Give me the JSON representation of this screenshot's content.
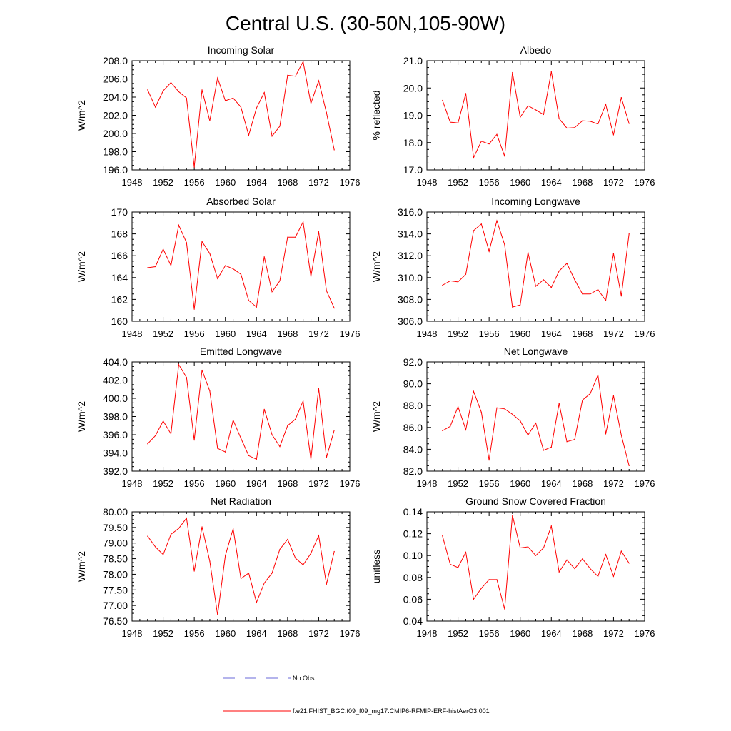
{
  "title": "Central U.S. (30-50N,105-90W)",
  "colors": {
    "model": "#ff0000",
    "obs": "#6a6ad8",
    "axes": "#000000"
  },
  "legend": {
    "obs_label": "No Obs",
    "model_label": "f.e21.FHIST_BGC.f09_f09_mg17.CMIP6-RFMIP-ERF-histAerO3.001"
  },
  "chart_data": [
    {
      "type": "line",
      "title": "Incoming Solar",
      "ylabel": "W/m^2",
      "xlim": [
        1948,
        1976
      ],
      "ylim": [
        196,
        208
      ],
      "xticks": [
        1948,
        1952,
        1956,
        1960,
        1964,
        1968,
        1972,
        1976
      ],
      "yticks": [
        "196.0",
        "198.0",
        "200.0",
        "202.0",
        "204.0",
        "206.0",
        "208.0"
      ],
      "x": [
        1950,
        1951,
        1952,
        1953,
        1954,
        1955,
        1956,
        1957,
        1958,
        1959,
        1960,
        1961,
        1962,
        1963,
        1964,
        1965,
        1966,
        1967,
        1968,
        1969,
        1970,
        1971,
        1972,
        1973,
        1974
      ],
      "values": [
        204.8,
        202.9,
        204.7,
        205.6,
        204.6,
        203.9,
        196.3,
        204.8,
        201.4,
        206.1,
        203.6,
        203.9,
        202.9,
        199.8,
        202.8,
        204.5,
        199.7,
        200.8,
        206.4,
        206.3,
        207.9,
        203.3,
        205.8,
        202.3,
        198.2
      ]
    },
    {
      "type": "line",
      "title": "Albedo",
      "ylabel": "% reflected",
      "xlim": [
        1948,
        1976
      ],
      "ylim": [
        17,
        21
      ],
      "xticks": [
        1948,
        1952,
        1956,
        1960,
        1964,
        1968,
        1972,
        1976
      ],
      "yticks": [
        "17.0",
        "18.0",
        "19.0",
        "20.0",
        "21.0"
      ],
      "x": [
        1950,
        1951,
        1952,
        1953,
        1954,
        1955,
        1956,
        1957,
        1958,
        1959,
        1960,
        1961,
        1962,
        1963,
        1964,
        1965,
        1966,
        1967,
        1968,
        1969,
        1970,
        1971,
        1972,
        1973,
        1974
      ],
      "values": [
        19.55,
        18.75,
        18.72,
        19.8,
        17.45,
        18.05,
        17.95,
        18.3,
        17.5,
        20.57,
        18.93,
        19.35,
        19.2,
        19.03,
        20.6,
        18.88,
        18.53,
        18.55,
        18.8,
        18.78,
        18.68,
        19.4,
        18.28,
        19.65,
        18.7
      ]
    },
    {
      "type": "line",
      "title": "Absorbed Solar",
      "ylabel": "W/m^2",
      "xlim": [
        1948,
        1976
      ],
      "ylim": [
        160,
        170
      ],
      "xticks": [
        1948,
        1952,
        1956,
        1960,
        1964,
        1968,
        1972,
        1976
      ],
      "yticks": [
        "160",
        "162",
        "164",
        "166",
        "168",
        "170"
      ],
      "x": [
        1950,
        1951,
        1952,
        1953,
        1954,
        1955,
        1956,
        1957,
        1958,
        1959,
        1960,
        1961,
        1962,
        1963,
        1964,
        1965,
        1966,
        1967,
        1968,
        1969,
        1970,
        1971,
        1972,
        1973,
        1974
      ],
      "values": [
        164.9,
        165.0,
        166.6,
        165.1,
        168.8,
        167.2,
        161.1,
        167.3,
        166.2,
        163.9,
        165.1,
        164.8,
        164.3,
        161.9,
        161.3,
        165.9,
        162.7,
        163.7,
        167.7,
        167.7,
        169.1,
        164.1,
        168.2,
        162.8,
        161.2
      ]
    },
    {
      "type": "line",
      "title": "Incoming Longwave",
      "ylabel": "W/m^2",
      "xlim": [
        1948,
        1976
      ],
      "ylim": [
        306,
        316
      ],
      "xticks": [
        1948,
        1952,
        1956,
        1960,
        1964,
        1968,
        1972,
        1976
      ],
      "yticks": [
        "306.0",
        "308.0",
        "310.0",
        "312.0",
        "314.0",
        "316.0"
      ],
      "x": [
        1950,
        1951,
        1952,
        1953,
        1954,
        1955,
        1956,
        1957,
        1958,
        1959,
        1960,
        1961,
        1962,
        1963,
        1964,
        1965,
        1966,
        1967,
        1968,
        1969,
        1970,
        1971,
        1972,
        1973,
        1974
      ],
      "values": [
        309.3,
        309.7,
        309.6,
        310.3,
        314.3,
        314.9,
        312.4,
        315.2,
        313.0,
        307.3,
        307.5,
        312.3,
        309.2,
        309.8,
        309.1,
        310.6,
        311.3,
        309.8,
        308.5,
        308.5,
        308.9,
        307.9,
        312.2,
        308.3,
        314.0
      ]
    },
    {
      "type": "line",
      "title": "Emitted Longwave",
      "ylabel": "W/m^2",
      "xlim": [
        1948,
        1976
      ],
      "ylim": [
        392,
        404
      ],
      "xticks": [
        1948,
        1952,
        1956,
        1960,
        1964,
        1968,
        1972,
        1976
      ],
      "yticks": [
        "392.0",
        "394.0",
        "396.0",
        "398.0",
        "400.0",
        "402.0",
        "404.0"
      ],
      "x": [
        1950,
        1951,
        1952,
        1953,
        1954,
        1955,
        1956,
        1957,
        1958,
        1959,
        1960,
        1961,
        1962,
        1963,
        1964,
        1965,
        1966,
        1967,
        1968,
        1969,
        1970,
        1971,
        1972,
        1973,
        1974
      ],
      "values": [
        395.0,
        395.9,
        397.5,
        396.1,
        403.7,
        402.3,
        395.4,
        403.1,
        400.8,
        394.5,
        394.1,
        397.6,
        395.6,
        393.7,
        393.3,
        398.8,
        396.0,
        394.7,
        397.0,
        397.7,
        399.7,
        393.3,
        401.1,
        393.5,
        396.5
      ]
    },
    {
      "type": "line",
      "title": "Net Longwave",
      "ylabel": "W/m^2",
      "xlim": [
        1948,
        1976
      ],
      "ylim": [
        82,
        92
      ],
      "xticks": [
        1948,
        1952,
        1956,
        1960,
        1964,
        1968,
        1972,
        1976
      ],
      "yticks": [
        "82.0",
        "84.0",
        "86.0",
        "88.0",
        "90.0",
        "92.0"
      ],
      "x": [
        1950,
        1951,
        1952,
        1953,
        1954,
        1955,
        1956,
        1957,
        1958,
        1959,
        1960,
        1961,
        1962,
        1963,
        1964,
        1965,
        1966,
        1967,
        1968,
        1969,
        1970,
        1971,
        1972,
        1973,
        1974
      ],
      "values": [
        85.7,
        86.1,
        87.9,
        85.8,
        89.3,
        87.4,
        83.0,
        87.8,
        87.7,
        87.2,
        86.6,
        85.3,
        86.4,
        83.9,
        84.2,
        88.2,
        84.7,
        84.9,
        88.5,
        89.1,
        90.8,
        85.4,
        88.9,
        85.3,
        82.5
      ]
    },
    {
      "type": "line",
      "title": "Net Radiation",
      "ylabel": "W/m^2",
      "xlim": [
        1948,
        1976
      ],
      "ylim": [
        76.5,
        80
      ],
      "xticks": [
        1948,
        1952,
        1956,
        1960,
        1964,
        1968,
        1972,
        1976
      ],
      "yticks": [
        "76.50",
        "77.00",
        "77.50",
        "78.00",
        "78.50",
        "79.00",
        "79.50",
        "80.00"
      ],
      "x": [
        1950,
        1951,
        1952,
        1953,
        1954,
        1955,
        1956,
        1957,
        1958,
        1959,
        1960,
        1961,
        1962,
        1963,
        1964,
        1965,
        1966,
        1967,
        1968,
        1969,
        1970,
        1971,
        1972,
        1973,
        1974
      ],
      "values": [
        79.22,
        78.88,
        78.63,
        79.28,
        79.47,
        79.8,
        78.1,
        79.52,
        78.42,
        76.7,
        78.6,
        79.46,
        77.86,
        78.04,
        77.1,
        77.72,
        78.04,
        78.8,
        79.12,
        78.52,
        78.3,
        78.67,
        79.24,
        77.68,
        78.73
      ]
    },
    {
      "type": "line",
      "title": "Ground Snow Covered Fraction",
      "ylabel": "unitless",
      "xlim": [
        1948,
        1976
      ],
      "ylim": [
        0.04,
        0.14
      ],
      "xticks": [
        1948,
        1952,
        1956,
        1960,
        1964,
        1968,
        1972,
        1976
      ],
      "yticks": [
        "0.04",
        "0.06",
        "0.08",
        "0.10",
        "0.12",
        "0.14"
      ],
      "x": [
        1950,
        1951,
        1952,
        1953,
        1954,
        1955,
        1956,
        1957,
        1958,
        1959,
        1960,
        1961,
        1962,
        1963,
        1964,
        1965,
        1966,
        1967,
        1968,
        1969,
        1970,
        1971,
        1972,
        1973,
        1974
      ],
      "values": [
        0.118,
        0.092,
        0.089,
        0.103,
        0.06,
        0.07,
        0.078,
        0.078,
        0.051,
        0.137,
        0.107,
        0.108,
        0.1,
        0.107,
        0.127,
        0.085,
        0.096,
        0.088,
        0.097,
        0.088,
        0.081,
        0.101,
        0.081,
        0.104,
        0.093
      ]
    }
  ]
}
